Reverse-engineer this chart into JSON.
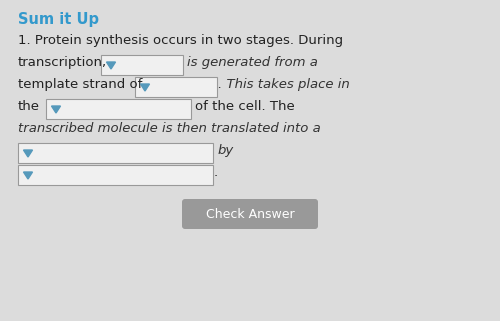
{
  "bg_color": "#dcdcdc",
  "title": "Sum it Up",
  "title_color": "#3399cc",
  "title_fontsize": 10.5,
  "body_color": "#222222",
  "body_fontsize": 9.5,
  "italic_color": "#333333",
  "line1": "1. Protein synthesis occurs in two stages. During",
  "line2_pre": "transcription,",
  "line2_post": "is generated from a",
  "line3_pre": "template strand of",
  "line3_post": ". This takes place in",
  "line4_pre": "the",
  "line4_post": "of the cell. The",
  "line5": "transcribed molecule is then translated into a",
  "line6_post": "by",
  "line7_post": ".",
  "box_fill": "#f0f0f0",
  "box_edge": "#999999",
  "arrow_color": "#5599bb",
  "btn_fill": "#999999",
  "btn_text": "Check Answer",
  "btn_text_color": "#ffffff",
  "btn_fontsize": 9
}
